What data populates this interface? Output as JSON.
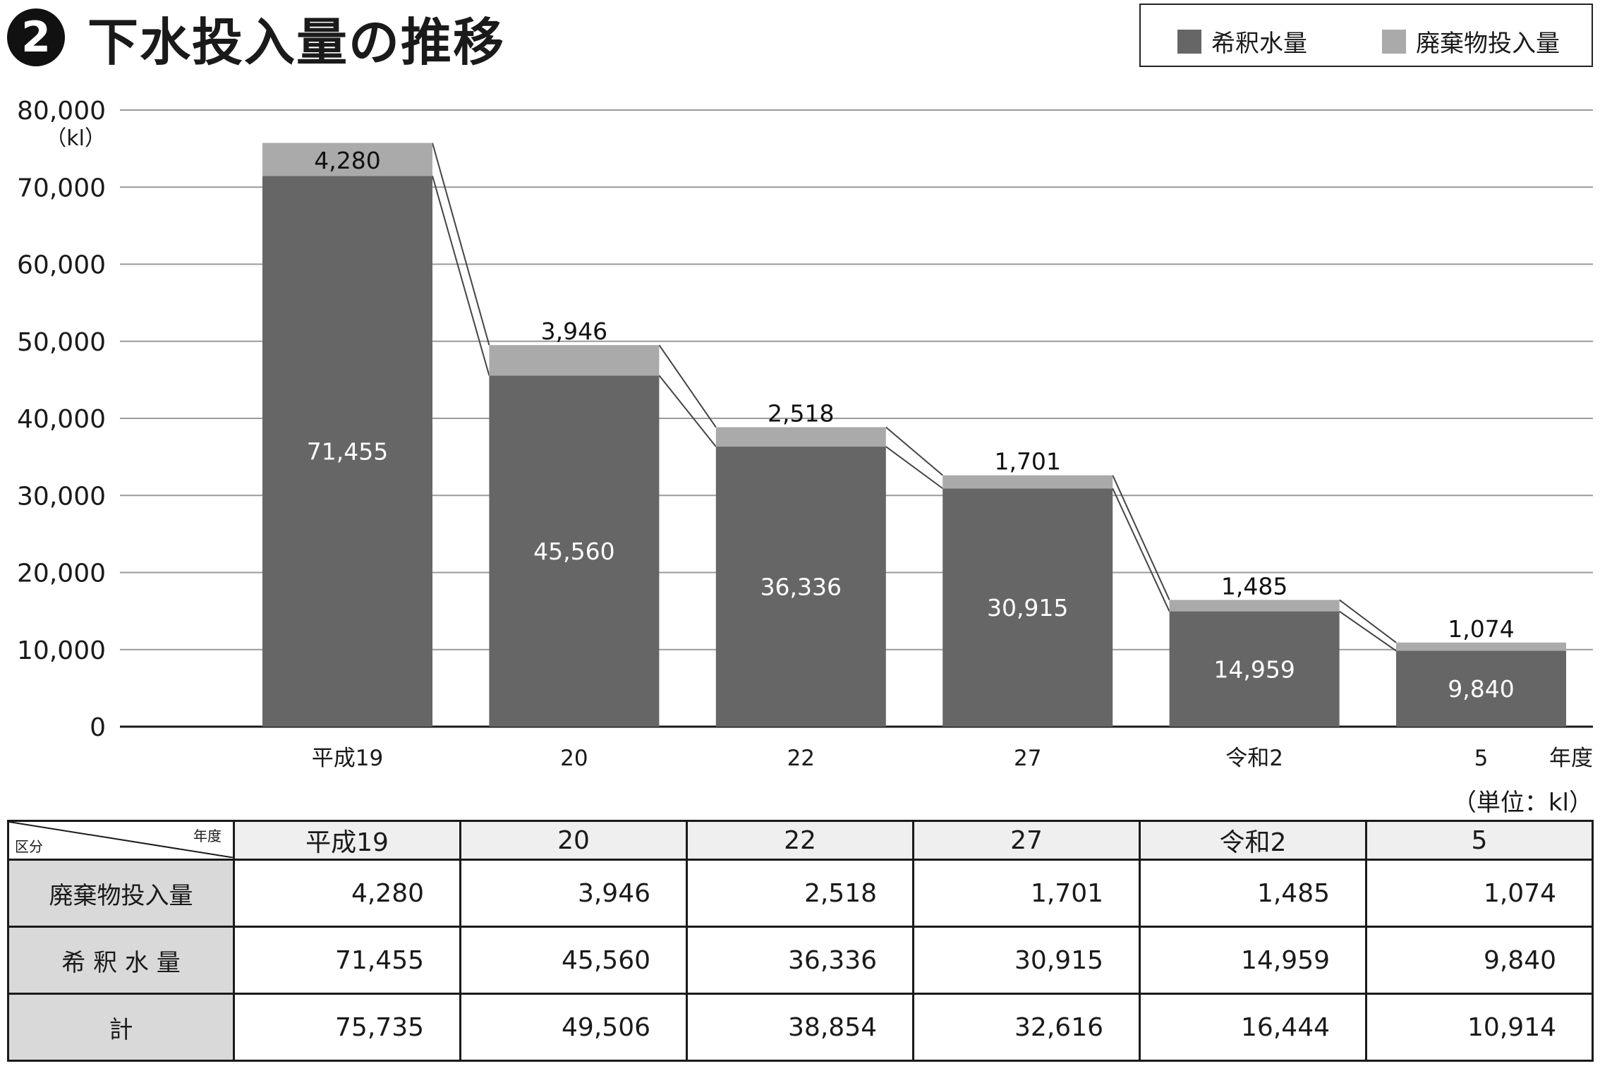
{
  "header": {
    "badge": "2",
    "title": "下水投入量の推移"
  },
  "legend": {
    "items": [
      {
        "label": "希釈水量",
        "color": "#666666"
      },
      {
        "label": "廃棄物投入量",
        "color": "#aaaaaa"
      }
    ]
  },
  "chart_data": {
    "type": "bar",
    "stacked": true,
    "categories": [
      "平成19",
      "20",
      "22",
      "27",
      "令和2",
      "5"
    ],
    "series": [
      {
        "name": "希釈水量",
        "color": "#666666",
        "values": [
          71455,
          45560,
          36336,
          30915,
          14959,
          9840
        ]
      },
      {
        "name": "廃棄物投入量",
        "color": "#aaaaaa",
        "values": [
          4280,
          3946,
          2518,
          1701,
          1485,
          1074
        ]
      }
    ],
    "ylim": [
      0,
      80000
    ],
    "yticks": [
      "0",
      "10,000",
      "20,000",
      "30,000",
      "40,000",
      "50,000",
      "60,000",
      "70,000",
      "80,000"
    ],
    "yunit": "（kl）",
    "xlabel": "年度",
    "grid": true,
    "connector_lines": true
  },
  "table": {
    "unit": "（単位：kl）",
    "corner_top": "年度",
    "corner_bottom": "区分",
    "columns": [
      "平成19",
      "20",
      "22",
      "27",
      "令和2",
      "5"
    ],
    "rows": [
      {
        "label": "廃棄物投入量",
        "values": [
          "4,280",
          "3,946",
          "2,518",
          "1,701",
          "1,485",
          "1,074"
        ]
      },
      {
        "label": "希 釈 水 量",
        "values": [
          "71,455",
          "45,560",
          "36,336",
          "30,915",
          "14,959",
          "9,840"
        ]
      },
      {
        "label": "計",
        "values": [
          "75,735",
          "49,506",
          "38,854",
          "32,616",
          "16,444",
          "10,914"
        ]
      }
    ]
  }
}
